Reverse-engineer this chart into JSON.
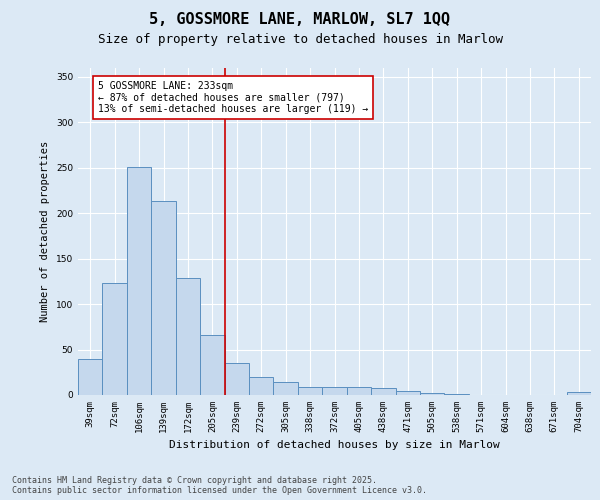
{
  "title_line1": "5, GOSSMORE LANE, MARLOW, SL7 1QQ",
  "title_line2": "Size of property relative to detached houses in Marlow",
  "xlabel": "Distribution of detached houses by size in Marlow",
  "ylabel": "Number of detached properties",
  "categories": [
    "39sqm",
    "72sqm",
    "106sqm",
    "139sqm",
    "172sqm",
    "205sqm",
    "239sqm",
    "272sqm",
    "305sqm",
    "338sqm",
    "372sqm",
    "405sqm",
    "438sqm",
    "471sqm",
    "505sqm",
    "538sqm",
    "571sqm",
    "604sqm",
    "638sqm",
    "671sqm",
    "704sqm"
  ],
  "values": [
    40,
    123,
    251,
    213,
    129,
    66,
    35,
    20,
    14,
    9,
    9,
    9,
    8,
    4,
    2,
    1,
    0,
    0,
    0,
    0,
    3
  ],
  "bar_color": "#c5d8ed",
  "bar_edge_color": "#5a8fc0",
  "vline_color": "#cc0000",
  "annotation_text": "5 GOSSMORE LANE: 233sqm\n← 87% of detached houses are smaller (797)\n13% of semi-detached houses are larger (119) →",
  "annotation_box_color": "#ffffff",
  "annotation_box_edge": "#cc0000",
  "background_color": "#dce9f5",
  "plot_bg_color": "#dce9f5",
  "ylim": [
    0,
    360
  ],
  "yticks": [
    0,
    50,
    100,
    150,
    200,
    250,
    300,
    350
  ],
  "footer_text": "Contains HM Land Registry data © Crown copyright and database right 2025.\nContains public sector information licensed under the Open Government Licence v3.0.",
  "title_fontsize": 11,
  "subtitle_fontsize": 9,
  "ylabel_fontsize": 7.5,
  "xlabel_fontsize": 8,
  "tick_fontsize": 6.5,
  "annot_fontsize": 7,
  "footer_fontsize": 6
}
